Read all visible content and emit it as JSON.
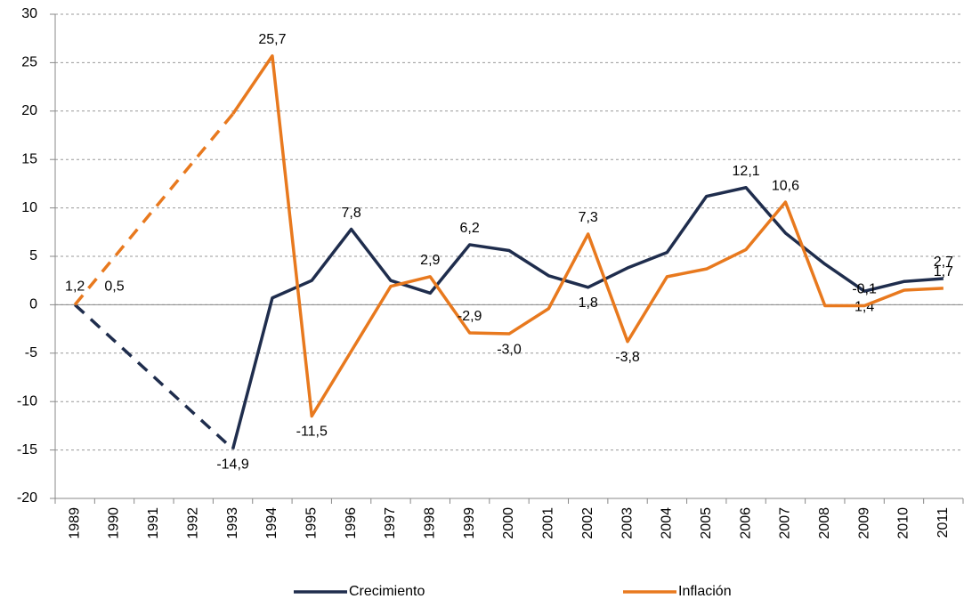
{
  "chart_data": {
    "type": "line",
    "categories": [
      "1989",
      "1990",
      "1991",
      "1992",
      "1993",
      "1994",
      "1995",
      "1996",
      "1997",
      "1998",
      "1999",
      "2000",
      "2001",
      "2002",
      "2003",
      "2004",
      "2005",
      "2006",
      "2007",
      "2008",
      "2009",
      "2010",
      "2011"
    ],
    "series": [
      {
        "name": "Crecimiento",
        "color": "#1f2d4d",
        "values": [
          0,
          null,
          null,
          null,
          -14.9,
          0.7,
          2.5,
          7.8,
          2.5,
          1.2,
          6.2,
          5.6,
          3.0,
          1.8,
          3.8,
          5.4,
          11.2,
          12.1,
          7.4,
          4.2,
          1.4,
          2.4,
          2.7
        ],
        "value_labels": [
          null,
          null,
          null,
          null,
          "-14,9",
          null,
          null,
          "7,8",
          null,
          null,
          "6,2",
          null,
          null,
          "1,8",
          null,
          null,
          null,
          "12,1",
          null,
          null,
          "1,4",
          null,
          "2,7"
        ]
      },
      {
        "name": "Inflación",
        "color": "#e8791e",
        "values": [
          0,
          null,
          null,
          null,
          19.7,
          25.7,
          -11.5,
          -4.8,
          1.9,
          2.9,
          -2.9,
          -3.0,
          -0.4,
          7.3,
          -3.8,
          2.9,
          3.7,
          5.7,
          10.6,
          -0.1,
          -0.1,
          1.5,
          1.7
        ],
        "value_labels": [
          null,
          null,
          null,
          null,
          null,
          "25,7",
          "-11,5",
          null,
          null,
          "2,9",
          "-2,9",
          "-3,0",
          null,
          "7,3",
          "-3,8",
          null,
          null,
          null,
          "10,6",
          null,
          "-0,1",
          null,
          "1,7"
        ]
      }
    ],
    "annotations": [
      "1,2",
      "0,5"
    ],
    "ylim": [
      -20,
      30
    ],
    "yticks": [
      -20,
      -15,
      -10,
      -5,
      0,
      5,
      10,
      15,
      20,
      25,
      30
    ],
    "grid": true,
    "gap_style": "dashed",
    "legend": "bottom"
  }
}
